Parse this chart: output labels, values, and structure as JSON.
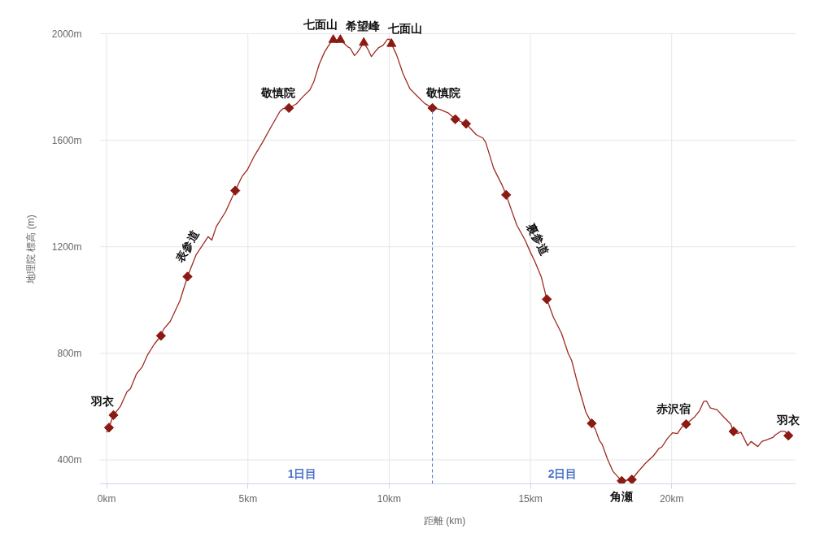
{
  "chart_data": {
    "type": "line",
    "xlabel": "距離 (km)",
    "ylabel": "地理院 標高 (m)",
    "xlim": [
      -0.25,
      24.4
    ],
    "ylim": [
      310,
      2000
    ],
    "xticks": [
      {
        "value": 0,
        "label": "0km"
      },
      {
        "value": 5,
        "label": "5km"
      },
      {
        "value": 10,
        "label": "10km"
      },
      {
        "value": 15,
        "label": "15km"
      },
      {
        "value": 20,
        "label": "20km"
      }
    ],
    "yticks": [
      {
        "value": 400,
        "label": "400m"
      },
      {
        "value": 800,
        "label": "800m"
      },
      {
        "value": 1200,
        "label": "1200m"
      },
      {
        "value": 1600,
        "label": "1600m"
      },
      {
        "value": 2000,
        "label": "2000m"
      }
    ],
    "grid": true,
    "series": [
      {
        "name": "表参道",
        "color": "#9e2a22",
        "x": [
          0,
          0.08,
          0.24,
          0.48,
          0.72,
          0.84,
          1.05,
          1.25,
          1.44,
          1.68,
          1.92,
          2.01,
          2.25,
          2.59,
          2.86,
          3.16,
          3.59,
          3.72,
          3.88,
          4.21,
          4.55,
          4.79,
          4.98,
          5.22,
          5.51,
          5.8,
          6.13,
          6.23,
          6.45
        ],
        "values": [
          505,
          521,
          568,
          600,
          656,
          667,
          722,
          748,
          793,
          834,
          866,
          890,
          920,
          997,
          1088,
          1169,
          1238,
          1225,
          1276,
          1332,
          1411,
          1464,
          1489,
          1540,
          1591,
          1647,
          1708,
          1718,
          1721
        ]
      },
      {
        "color": "#9e2a22",
        "x": [
          6.45,
          6.71,
          6.95,
          7.19,
          7.33,
          7.52,
          7.71,
          7.9,
          8.02,
          8.27,
          8.53,
          8.62,
          8.77,
          8.86,
          9.1,
          9.25,
          9.37,
          9.49,
          9.63,
          9.78,
          9.94,
          10.01,
          10.08,
          10.26,
          10.49,
          10.73,
          10.97,
          11.26,
          11.53
        ],
        "values": [
          1721,
          1736,
          1764,
          1789,
          1819,
          1885,
          1931,
          1963,
          1977,
          1977,
          1951,
          1946,
          1918,
          1928,
          1966,
          1941,
          1914,
          1931,
          1948,
          1956,
          1979,
          1980,
          1962,
          1921,
          1850,
          1794,
          1768,
          1738,
          1721
        ]
      },
      {
        "name": "裏参道",
        "color": "#9e2a22",
        "x": [
          11.53,
          11.79,
          12.08,
          12.34,
          12.72,
          13.08,
          13.32,
          13.42,
          13.7,
          13.99,
          14.14,
          14.33,
          14.52,
          14.81,
          15.0,
          15.14,
          15.38,
          15.58,
          15.81,
          16.1,
          16.34,
          16.46,
          16.68,
          16.96,
          17.17,
          17.3,
          17.44,
          17.54,
          17.73,
          17.92,
          18.23
        ],
        "values": [
          1721,
          1716,
          1703,
          1679,
          1662,
          1621,
          1608,
          1591,
          1494,
          1433,
          1395,
          1337,
          1281,
          1225,
          1179,
          1149,
          1088,
          1003,
          936,
          875,
          799,
          773,
          682,
          580,
          537,
          514,
          473,
          458,
          402,
          357,
          321
        ]
      },
      {
        "color": "#9e2a22",
        "x": [
          18.23,
          18.59,
          18.78,
          19.07,
          19.36,
          19.55,
          19.65,
          19.84,
          20.03,
          20.2,
          20.37,
          20.51,
          20.8,
          20.99,
          21.13,
          21.23,
          21.37,
          21.61,
          21.85,
          22.09,
          22.19,
          22.33,
          22.45,
          22.57,
          22.69,
          22.81,
          23.05,
          23.19,
          23.38,
          23.58,
          23.67,
          23.86,
          24.01,
          24.13
        ],
        "values": [
          321,
          326,
          352,
          387,
          416,
          443,
          448,
          479,
          502,
          499,
          525,
          534,
          560,
          585,
          619,
          621,
          595,
          588,
          560,
          534,
          507,
          499,
          504,
          479,
          453,
          469,
          450,
          469,
          476,
          484,
          494,
          507,
          507,
          491
        ]
      },
      {
        "type": "scatter",
        "marker": "diamond",
        "color": "#8b1a12",
        "x": [
          0.08,
          0.24,
          1.92,
          2.86,
          4.55,
          6.45,
          11.53,
          12.34,
          12.72,
          14.14,
          15.58,
          17.17,
          18.23,
          18.59,
          20.51,
          22.19,
          24.13
        ],
        "values": [
          521,
          568,
          866,
          1088,
          1411,
          1721,
          1721,
          1679,
          1662,
          1395,
          1003,
          537,
          321,
          326,
          534,
          507,
          491
        ]
      },
      {
        "type": "scatter",
        "marker": "triangle",
        "color": "#8b1a12",
        "x": [
          8.02,
          8.27,
          9.1,
          10.08
        ],
        "values": [
          1977,
          1977,
          1966,
          1962
        ]
      }
    ],
    "ref_lines": [
      {
        "axis": "x",
        "value": 11.53,
        "color": "#4a72c8",
        "line_style": "dashed"
      }
    ],
    "annotations": [
      {
        "text": "羽衣",
        "x": 0.08,
        "y": 521
      },
      {
        "text": "敬慎院",
        "x": 6.45,
        "y": 1721
      },
      {
        "text": "七面山",
        "x": 8.02,
        "y": 1977
      },
      {
        "text": "希望峰",
        "x": 9.1,
        "y": 1966
      },
      {
        "text": "七面山",
        "x": 10.08,
        "y": 1962
      },
      {
        "text": "敬慎院",
        "x": 11.53,
        "y": 1721
      },
      {
        "text": "角瀬",
        "x": 18.23,
        "y": 321
      },
      {
        "text": "赤沢宿",
        "x": 20.51,
        "y": 534
      },
      {
        "text": "羽衣",
        "x": 24.13,
        "y": 491
      },
      "1日目",
      "2日目"
    ]
  }
}
